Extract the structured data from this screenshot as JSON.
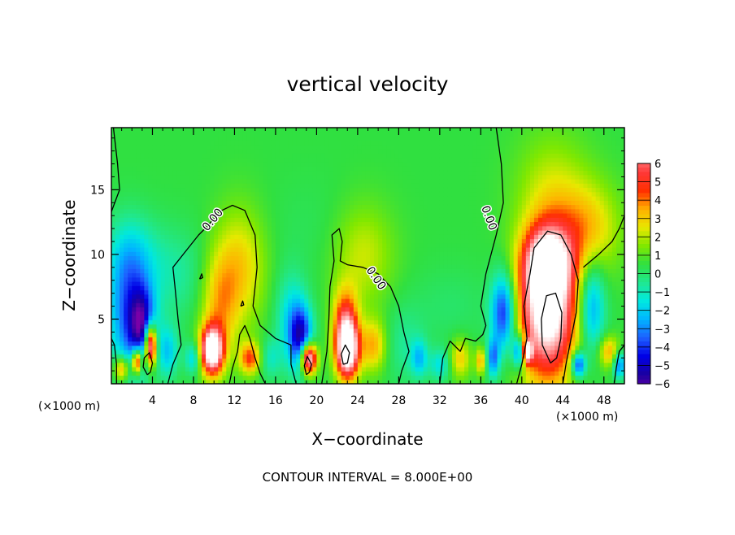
{
  "chart_data": {
    "type": "heatmap",
    "title": "vertical velocity",
    "xlabel": "X−coordinate",
    "ylabel": "Z−coordinate",
    "x_unit": "(×1000 m)",
    "x_unit_right": "(×1000 m)",
    "xlim": [
      0,
      50
    ],
    "ylim": [
      0,
      19.8
    ],
    "x_ticks": [
      4,
      8,
      12,
      16,
      20,
      24,
      28,
      32,
      36,
      40,
      44,
      48
    ],
    "y_ticks": [
      5,
      10,
      15
    ],
    "x_tick_labels": [
      "4",
      "8",
      "12",
      "16",
      "20",
      "24",
      "28",
      "32",
      "36",
      "40",
      "44",
      "48"
    ],
    "y_tick_labels": [
      "5",
      "10",
      "15"
    ],
    "colorbar_ticks": [
      "6",
      "5",
      "4",
      "3",
      "2",
      "1",
      "0",
      "−1",
      "−2",
      "−3",
      "−4",
      "−5",
      "−6"
    ],
    "colorbar_range": [
      -6,
      6
    ],
    "contour_label": "0.00",
    "footer": "CONTOUR INTERVAL = 8.000E+00",
    "grid": false,
    "background_value": 0.5,
    "features": [
      {
        "x": 42.5,
        "z": 6.0,
        "value": 9,
        "rx": 2.8,
        "rz": 5.5
      },
      {
        "x": 42.5,
        "z": 9.5,
        "value": 5,
        "rx": 2.2,
        "rz": 2.5
      },
      {
        "x": 38.2,
        "z": 5.5,
        "value": -5,
        "rx": 1.2,
        "rz": 3.0
      },
      {
        "x": 39.8,
        "z": 2.5,
        "value": -5,
        "rx": 0.7,
        "rz": 1.3
      },
      {
        "x": 37.2,
        "z": 2.0,
        "value": -3.5,
        "rx": 0.6,
        "rz": 1.5
      },
      {
        "x": 36.0,
        "z": 1.8,
        "value": 3,
        "rx": 0.5,
        "rz": 1.0
      },
      {
        "x": 40.5,
        "z": 2.5,
        "value": 7,
        "rx": 0.5,
        "rz": 0.9
      },
      {
        "x": 46.8,
        "z": 6.0,
        "value": -3.5,
        "rx": 1.3,
        "rz": 3.5
      },
      {
        "x": 45.5,
        "z": 1.5,
        "value": -5,
        "rx": 0.7,
        "rz": 1.0
      },
      {
        "x": 48.5,
        "z": 2.5,
        "value": 3,
        "rx": 1.0,
        "rz": 1.2
      },
      {
        "x": 49.5,
        "z": 1.5,
        "value": -4,
        "rx": 0.6,
        "rz": 1.0
      },
      {
        "x": 46.5,
        "z": 12.0,
        "value": 2.5,
        "rx": 3.0,
        "rz": 3.5
      },
      {
        "x": 43.0,
        "z": 15.0,
        "value": 1.5,
        "rx": 3.5,
        "rz": 4.5
      },
      {
        "x": 3.8,
        "z": 3.0,
        "value": 9,
        "rx": 0.6,
        "rz": 1.6
      },
      {
        "x": 3.0,
        "z": 4.5,
        "value": -5,
        "rx": 1.3,
        "rz": 3.0
      },
      {
        "x": 1.5,
        "z": 5.5,
        "value": -3.5,
        "rx": 2.0,
        "rz": 5.0
      },
      {
        "x": 1.0,
        "z": 1.2,
        "value": 4,
        "rx": 0.8,
        "rz": 1.0
      },
      {
        "x": 2.5,
        "z": 1.8,
        "value": 7,
        "rx": 0.5,
        "rz": 1.0
      },
      {
        "x": 5.5,
        "z": 2.5,
        "value": -2.5,
        "rx": 1.0,
        "rz": 2.0
      },
      {
        "x": 6.0,
        "z": 8.5,
        "value": -1.2,
        "rx": 3.5,
        "rz": 3.5
      },
      {
        "x": 2.0,
        "z": 10.0,
        "value": -1.5,
        "rx": 2.5,
        "rz": 3.0
      },
      {
        "x": 9.8,
        "z": 2.6,
        "value": 9,
        "rx": 1.1,
        "rz": 1.8
      },
      {
        "x": 10.5,
        "z": 6.0,
        "value": 2.5,
        "rx": 1.8,
        "rz": 4.0
      },
      {
        "x": 8.0,
        "z": 2.0,
        "value": -2.5,
        "rx": 0.8,
        "rz": 1.2
      },
      {
        "x": 13.5,
        "z": 2.0,
        "value": 4,
        "rx": 1.0,
        "rz": 1.2
      },
      {
        "x": 12.5,
        "z": 9.0,
        "value": 2.5,
        "rx": 2.5,
        "rz": 4.5
      },
      {
        "x": 19.2,
        "z": 2.0,
        "value": 9,
        "rx": 0.8,
        "rz": 1.2
      },
      {
        "x": 18.5,
        "z": 3.5,
        "value": -5,
        "rx": 1.1,
        "rz": 2.5
      },
      {
        "x": 17.5,
        "z": 5.0,
        "value": -2.2,
        "rx": 1.5,
        "rz": 3.5
      },
      {
        "x": 23.0,
        "z": 2.6,
        "value": 9,
        "rx": 1.1,
        "rz": 2.2
      },
      {
        "x": 22.8,
        "z": 5.0,
        "value": 4,
        "rx": 1.2,
        "rz": 2.5
      },
      {
        "x": 25.5,
        "z": 3.0,
        "value": 3,
        "rx": 1.3,
        "rz": 2.0
      },
      {
        "x": 24.5,
        "z": 10.0,
        "value": 1.8,
        "rx": 3.0,
        "rz": 4.0
      },
      {
        "x": 30.0,
        "z": 2.0,
        "value": -2.5,
        "rx": 0.8,
        "rz": 1.4
      },
      {
        "x": 32.0,
        "z": 1.5,
        "value": -2.0,
        "rx": 1.0,
        "rz": 1.2
      },
      {
        "x": 34.0,
        "z": 2.0,
        "value": 2.5,
        "rx": 1.0,
        "rz": 1.5
      },
      {
        "x": 15.5,
        "z": 2.0,
        "value": -1.5,
        "rx": 1.0,
        "rz": 1.5
      },
      {
        "x": 28.5,
        "z": 3.0,
        "value": -1.0,
        "rx": 2.0,
        "rz": 3.0
      },
      {
        "x": 33.0,
        "z": 6.0,
        "value": -0.5,
        "rx": 4.0,
        "rz": 3.0
      },
      {
        "x": 20.0,
        "z": 12.0,
        "value": -0.3,
        "rx": 5.0,
        "rz": 4.0
      }
    ],
    "contours_value_0": [
      [
        [
          0.5,
          0
        ],
        [
          0.5,
          1.5
        ],
        [
          0.3,
          3
        ],
        [
          0,
          3.5
        ]
      ],
      [
        [
          0.2,
          19.8
        ],
        [
          0.6,
          17
        ],
        [
          0.8,
          15
        ],
        [
          0,
          13.3
        ]
      ],
      [
        [
          5.5,
          0
        ],
        [
          6,
          1.5
        ],
        [
          6.8,
          3
        ],
        [
          6.5,
          5
        ],
        [
          6.2,
          7.5
        ],
        [
          6.0,
          9
        ],
        [
          7.0,
          10
        ],
        [
          8.5,
          11.5
        ],
        [
          9.5,
          12.3
        ],
        [
          10.5,
          13.3
        ],
        [
          11.8,
          13.8
        ],
        [
          13,
          13.4
        ],
        [
          14,
          11.5
        ],
        [
          14.2,
          9
        ],
        [
          13.8,
          6
        ],
        [
          14.5,
          4.5
        ],
        [
          16,
          3.5
        ],
        [
          17.5,
          3
        ],
        [
          17.5,
          1.5
        ],
        [
          18,
          0
        ]
      ],
      [
        [
          11.5,
          0
        ],
        [
          11.8,
          1.2
        ],
        [
          12.3,
          2.5
        ],
        [
          12.5,
          3.8
        ],
        [
          13,
          4.5
        ],
        [
          13.5,
          3.5
        ],
        [
          14,
          2
        ],
        [
          14.5,
          0.8
        ],
        [
          15,
          0
        ]
      ],
      [
        [
          20.5,
          0
        ],
        [
          21,
          2.5
        ],
        [
          21.2,
          5
        ],
        [
          21.3,
          7.5
        ],
        [
          21.7,
          9.5
        ],
        [
          21.5,
          11.5
        ],
        [
          22.2,
          12
        ],
        [
          22.5,
          11
        ],
        [
          22.3,
          9.5
        ],
        [
          23,
          9.2
        ],
        [
          24.5,
          9
        ],
        [
          26,
          8.5
        ],
        [
          27.2,
          7.5
        ],
        [
          28,
          6
        ],
        [
          28.5,
          4
        ],
        [
          29,
          2.5
        ],
        [
          28.3,
          1
        ],
        [
          28,
          0
        ]
      ],
      [
        [
          32,
          0
        ],
        [
          32.3,
          2
        ],
        [
          33,
          3.3
        ],
        [
          34,
          2.5
        ],
        [
          34.5,
          3.5
        ],
        [
          35.5,
          3.3
        ],
        [
          36.2,
          3.8
        ],
        [
          36.5,
          4.5
        ],
        [
          36,
          6
        ],
        [
          36.5,
          8.5
        ],
        [
          37.5,
          11.5
        ],
        [
          38.2,
          14
        ],
        [
          38.0,
          17
        ],
        [
          37.5,
          19.8
        ]
      ],
      [
        [
          39.5,
          0
        ],
        [
          40,
          1.5
        ],
        [
          40.5,
          3.5
        ],
        [
          40.2,
          6
        ],
        [
          40.8,
          8.5
        ],
        [
          41.2,
          10.5
        ],
        [
          42.5,
          11.8
        ],
        [
          43.8,
          11.5
        ],
        [
          44.8,
          10
        ],
        [
          45.5,
          8
        ],
        [
          45.3,
          5.5
        ],
        [
          44.8,
          3.5
        ],
        [
          44.3,
          1.5
        ],
        [
          44,
          0
        ]
      ],
      [
        [
          49.0,
          0
        ],
        [
          49.2,
          1.2
        ],
        [
          49.5,
          2.5
        ],
        [
          50,
          3.0
        ]
      ],
      [
        [
          46,
          9
        ],
        [
          47.5,
          10
        ],
        [
          48.8,
          11
        ],
        [
          49.5,
          12
        ],
        [
          50,
          13
        ]
      ],
      [
        [
          42.8,
          1.6
        ],
        [
          42.0,
          3
        ],
        [
          41.9,
          5
        ],
        [
          42.4,
          6.8
        ],
        [
          43.3,
          7.0
        ],
        [
          43.9,
          5.5
        ],
        [
          43.8,
          3.5
        ],
        [
          43.4,
          2
        ],
        [
          42.8,
          1.6
        ]
      ],
      [
        [
          3.5,
          0.7
        ],
        [
          3.1,
          1.3
        ],
        [
          3.2,
          2
        ],
        [
          3.7,
          2.4
        ],
        [
          4.0,
          1.6
        ],
        [
          3.8,
          0.9
        ],
        [
          3.5,
          0.7
        ]
      ],
      [
        [
          19.0,
          0.7
        ],
        [
          18.8,
          1.4
        ],
        [
          19.1,
          2.1
        ],
        [
          19.5,
          1.5
        ],
        [
          19.3,
          0.9
        ],
        [
          19.0,
          0.7
        ]
      ],
      [
        [
          22.6,
          1.5
        ],
        [
          22.4,
          2.3
        ],
        [
          22.8,
          3.0
        ],
        [
          23.2,
          2.4
        ],
        [
          23.0,
          1.6
        ],
        [
          22.6,
          1.5
        ]
      ],
      [
        [
          8.6,
          8.1
        ],
        [
          8.8,
          8.5
        ],
        [
          8.9,
          8.2
        ],
        [
          8.6,
          8.1
        ]
      ],
      [
        [
          12.6,
          6.0
        ],
        [
          12.8,
          6.4
        ],
        [
          12.9,
          6.1
        ],
        [
          12.6,
          6.0
        ]
      ]
    ]
  }
}
